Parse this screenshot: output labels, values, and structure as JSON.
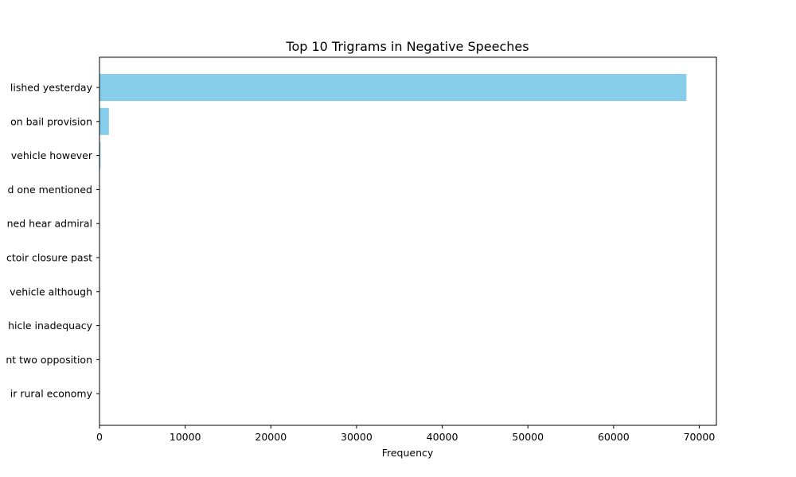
{
  "chart_data": {
    "type": "bar",
    "orientation": "horizontal",
    "title": "Top 10 Trigrams in Negative Speeches",
    "xlabel": "Frequency",
    "ylabel": "",
    "categories": [
      "lished yesterday",
      "on bail provision",
      "vehicle however",
      "d one mentioned",
      "ned hear admiral",
      "ctoir closure past",
      "vehicle although",
      "hicle inadequacy",
      "nt two opposition",
      "ir rural economy"
    ],
    "values": [
      68500,
      1100,
      120,
      25,
      20,
      15,
      12,
      10,
      8,
      6
    ],
    "xlim": [
      0,
      72000
    ],
    "xticks": [
      0,
      10000,
      20000,
      30000,
      40000,
      50000,
      60000,
      70000
    ],
    "bar_color": "#87ceeb",
    "grid": false,
    "legend": "none"
  }
}
